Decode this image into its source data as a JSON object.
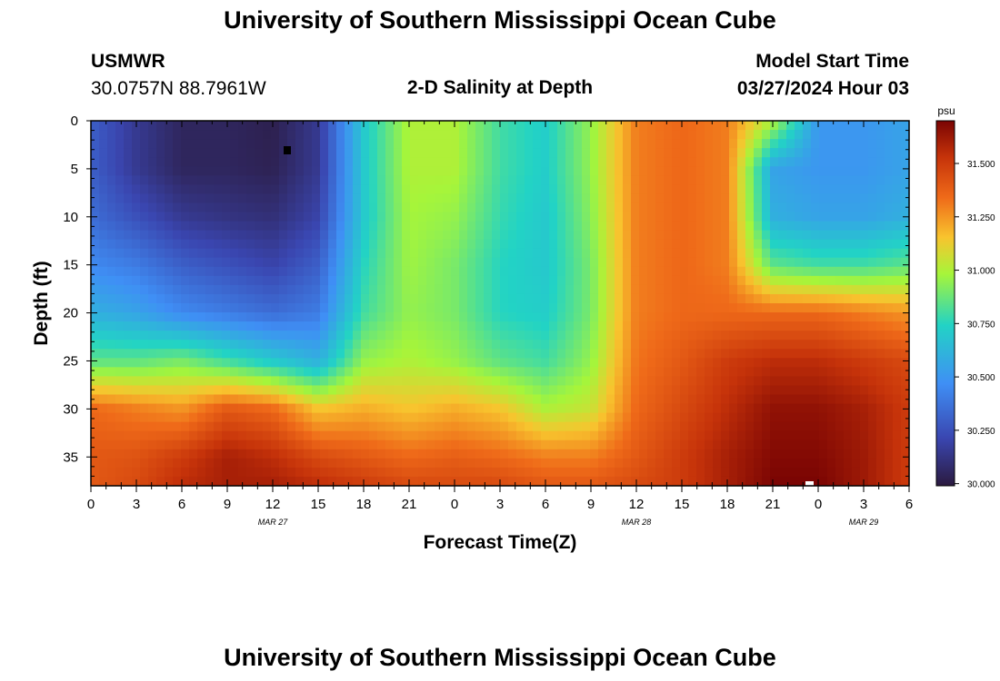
{
  "page_title": "University of Southern Mississippi Ocean Cube",
  "station": {
    "id": "USMWR",
    "coords": "30.0757N  88.7961W"
  },
  "plot_title": "2-D Salinity at Depth",
  "model_start": {
    "label": "Model Start Time",
    "value": "03/27/2024 Hour 03"
  },
  "footer_title": "University of Southern Mississippi Ocean Cube",
  "chart_data": {
    "type": "heatmap",
    "title": "2-D Salinity at Depth",
    "xlabel": "Forecast Time(Z)",
    "ylabel": "Depth (ft)",
    "x_tick_labels": [
      "0",
      "3",
      "6",
      "9",
      "12",
      "15",
      "18",
      "21",
      "0",
      "3",
      "6",
      "9",
      "12",
      "15",
      "18",
      "21",
      "0",
      "3",
      "6"
    ],
    "x_range_hours": [
      0,
      54
    ],
    "date_labels": [
      {
        "label": "MAR 27",
        "hour": 12
      },
      {
        "label": "MAR 28",
        "hour": 36
      },
      {
        "label": "MAR 29",
        "hour": 51
      }
    ],
    "y_ticks": [
      0,
      5,
      10,
      15,
      20,
      25,
      30,
      35
    ],
    "y_range_ft": [
      0,
      38
    ],
    "colorbar": {
      "unit": "psu",
      "min": 29.99,
      "max": 31.7,
      "tick_labels": [
        "30.000",
        "30.250",
        "30.500",
        "30.750",
        "31.000",
        "31.250",
        "31.500"
      ],
      "tick_values": [
        30.0,
        30.25,
        30.5,
        30.75,
        31.0,
        31.25,
        31.5
      ]
    },
    "salinity_surface": {
      "units": "psu",
      "description": "salinity vs forecast hour and depth; approximate field",
      "profile_hours": [
        0,
        3,
        6,
        9,
        12,
        15,
        18,
        21,
        24,
        27,
        30,
        33,
        36,
        39,
        42,
        45,
        48,
        51,
        54
      ],
      "profile_depths_ft": [
        0,
        5,
        10,
        15,
        20,
        25,
        30,
        35,
        38
      ],
      "profiles_psu": [
        [
          30.3,
          30.3,
          30.35,
          30.45,
          30.6,
          30.85,
          31.35,
          31.4,
          31.4
        ],
        [
          30.15,
          30.15,
          30.25,
          30.4,
          30.55,
          30.85,
          31.3,
          31.42,
          31.45
        ],
        [
          30.05,
          30.05,
          30.15,
          30.3,
          30.45,
          30.9,
          31.25,
          31.5,
          31.55
        ],
        [
          30.05,
          30.05,
          30.12,
          30.25,
          30.4,
          30.8,
          31.4,
          31.6,
          31.6
        ],
        [
          30.02,
          30.03,
          30.1,
          30.2,
          30.35,
          30.7,
          31.35,
          31.55,
          31.6
        ],
        [
          30.15,
          30.15,
          30.2,
          30.3,
          30.4,
          30.6,
          31.15,
          31.45,
          31.55
        ],
        [
          30.7,
          30.7,
          30.7,
          30.75,
          30.8,
          30.95,
          31.2,
          31.4,
          31.5
        ],
        [
          31.0,
          31.0,
          30.98,
          30.97,
          30.95,
          31.0,
          31.15,
          31.35,
          31.45
        ],
        [
          31.0,
          31.0,
          30.95,
          30.9,
          30.9,
          30.95,
          31.2,
          31.38,
          31.45
        ],
        [
          30.8,
          30.8,
          30.78,
          30.75,
          30.75,
          30.85,
          31.15,
          31.35,
          31.45
        ],
        [
          30.72,
          30.72,
          30.7,
          30.7,
          30.72,
          30.8,
          31.0,
          31.3,
          31.4
        ],
        [
          30.95,
          30.95,
          30.93,
          30.9,
          30.9,
          30.95,
          31.05,
          31.3,
          31.4
        ],
        [
          31.3,
          31.3,
          31.3,
          31.3,
          31.3,
          31.32,
          31.35,
          31.4,
          31.45
        ],
        [
          31.35,
          31.35,
          31.35,
          31.35,
          31.35,
          31.4,
          31.45,
          31.5,
          31.5
        ],
        [
          31.3,
          31.3,
          31.3,
          31.3,
          31.35,
          31.5,
          31.55,
          31.6,
          31.6
        ],
        [
          31.0,
          30.55,
          30.6,
          30.85,
          31.35,
          31.55,
          31.65,
          31.68,
          31.7
        ],
        [
          30.5,
          30.5,
          30.55,
          30.8,
          31.35,
          31.55,
          31.65,
          31.68,
          31.7
        ],
        [
          30.5,
          30.5,
          30.55,
          30.8,
          31.3,
          31.5,
          31.6,
          31.62,
          31.62
        ],
        [
          30.55,
          30.55,
          30.6,
          30.85,
          31.25,
          31.45,
          31.5,
          31.5,
          31.5
        ]
      ]
    }
  }
}
